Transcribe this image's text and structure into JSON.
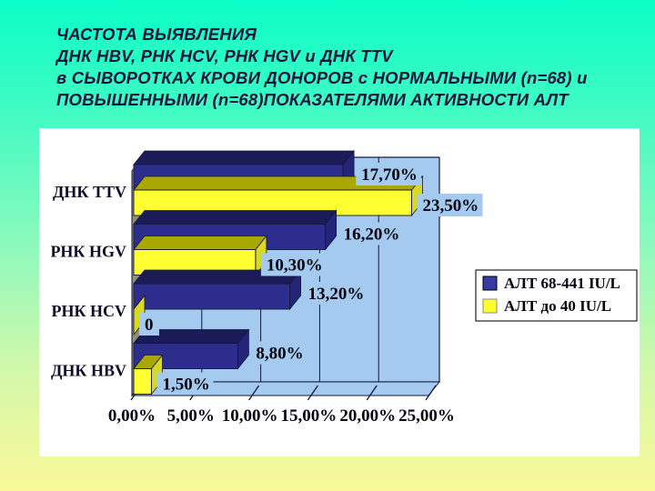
{
  "slide": {
    "title_lines": [
      "ЧАСТОТА ВЫЯВЛЕНИЯ",
      "ДНК HBV, РНК HCV, РНК HGV и ДНК TTV",
      "в СЫВОРОТКАХ КРОВИ ДОНОРОВ с НОРМАЛЬНЫМИ (n=68) и",
      "ПОВЫШЕННЫМИ (n=68)ПОКАЗАТЕЛЯМИ АКТИВНОСТИ АЛТ"
    ],
    "title_color": "#14143C",
    "background_top_color": "#0BFEC7",
    "background_bottom_color": "#FAF899"
  },
  "chart_data": {
    "type": "bar",
    "orientation": "horizontal",
    "style": "3d",
    "plot_bg": "#A4CAEF",
    "wall_side_color": "#8F8F77",
    "outline_color": "#15153A",
    "grid": true,
    "xlim": [
      0,
      25
    ],
    "x_ticks": [
      "0,00%",
      "5,00%",
      "10,00%",
      "15,00%",
      "20,00%",
      "25,00%"
    ],
    "categories": [
      "ДНК TTV",
      "РНК HGV",
      "РНК HCV",
      "ДНК HBV"
    ],
    "legend_position": "right",
    "series": [
      {
        "name": "АЛТ 68-441 IU/L",
        "values": [
          17.7,
          16.2,
          13.2,
          8.8
        ],
        "labels": [
          "17,70%",
          "16,20%",
          "13,20%",
          "8,80%"
        ],
        "color_front": "#2D2D8E",
        "color_top": "#1B1B58",
        "color_cap": "#242478",
        "legend_swatch": "#3A3AA0"
      },
      {
        "name": "АЛТ до 40 IU/L",
        "values": [
          23.5,
          10.3,
          0,
          1.5
        ],
        "labels": [
          "23,50%",
          "10,30%",
          "0",
          "1,50%"
        ],
        "color_front": "#FFFF32",
        "color_top": "#A8A800",
        "color_cap": "#D8D81F",
        "legend_swatch": "#FFFF2E"
      }
    ],
    "label_text_color": "#050510",
    "axis_text_color": "#050510",
    "category_text_color": "#0D0D2B"
  }
}
